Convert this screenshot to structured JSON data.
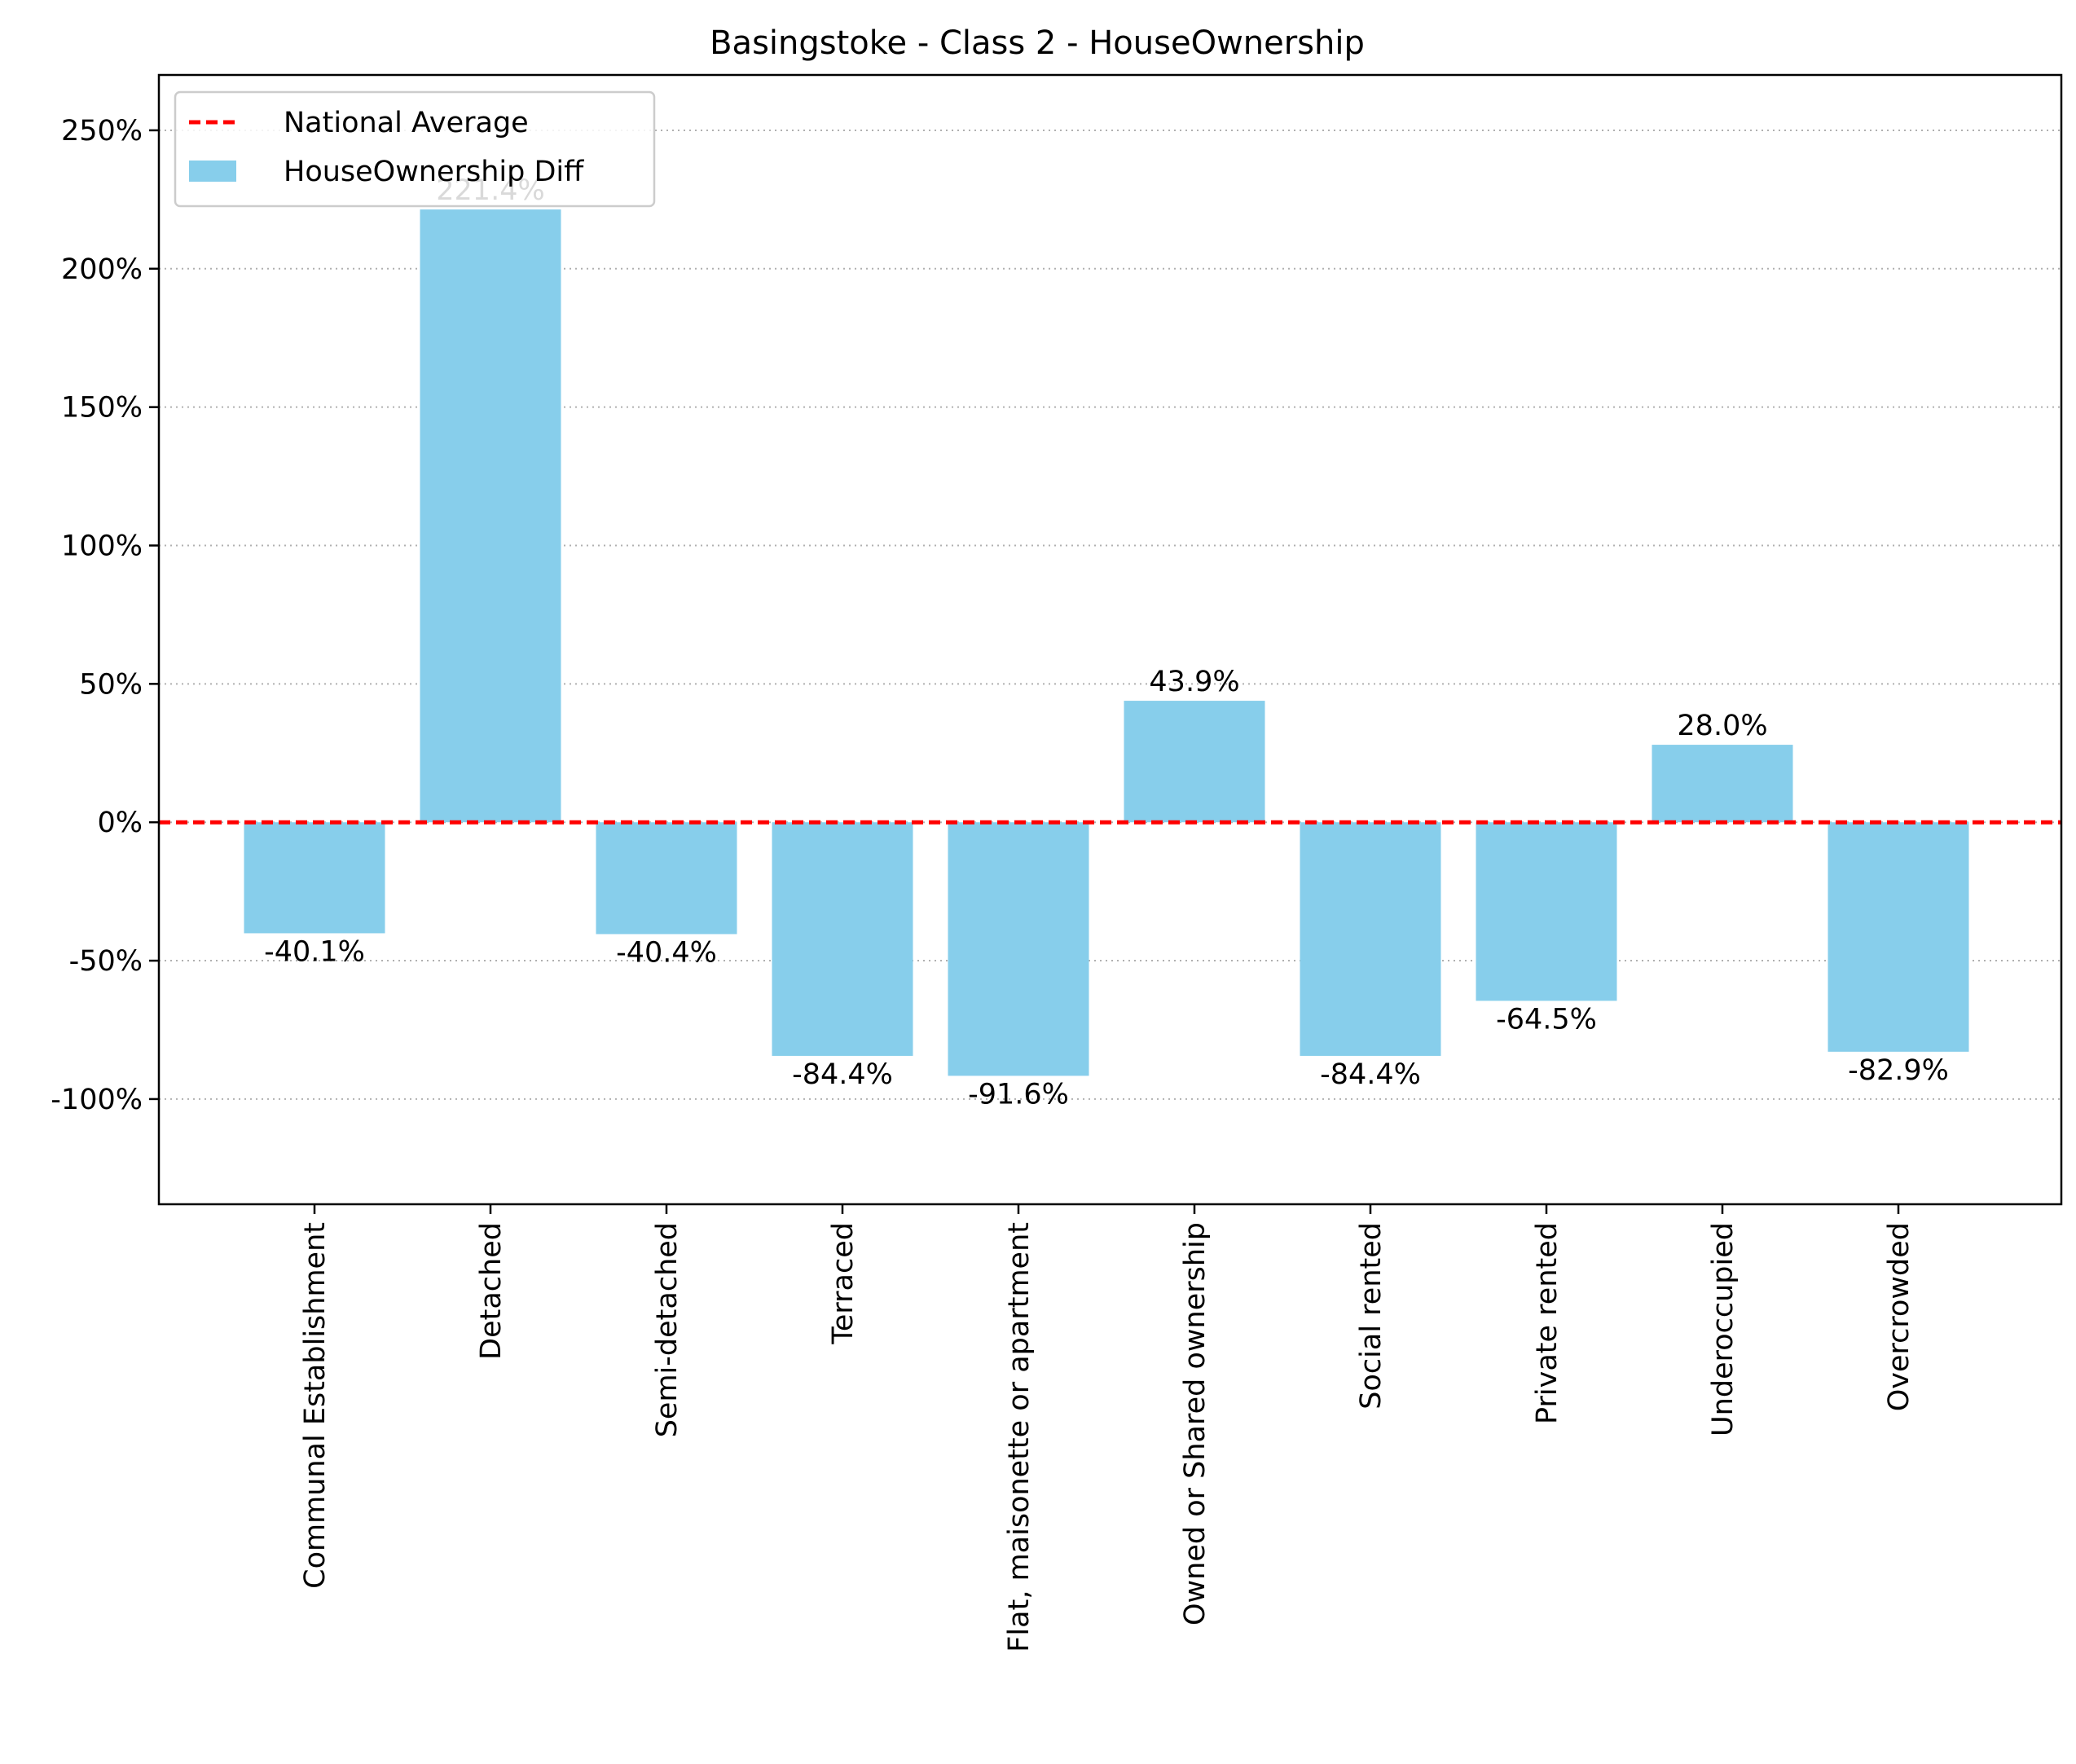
{
  "chart_data": {
    "type": "bar",
    "title": "Basingstoke - Class 2 - HouseOwnership",
    "xlabel": "",
    "ylabel": "",
    "categories": [
      "Communal Establishment",
      "Detached",
      "Semi-detached",
      "Terraced",
      "Flat, maisonette or apartment",
      "Owned or Shared ownership",
      "Social rented",
      "Private rented",
      "Underoccupied",
      "Overcrowded"
    ],
    "series": [
      {
        "name": "HouseOwnership Diff",
        "values": [
          -40.1,
          221.4,
          -40.4,
          -84.4,
          -91.6,
          43.9,
          -84.4,
          -64.5,
          28.0,
          -82.9
        ],
        "labels": [
          "-40.1%",
          "221.4%",
          "-40.4%",
          "-84.4%",
          "-91.6%",
          "43.9%",
          "-84.4%",
          "-64.5%",
          "28.0%",
          "-82.9%"
        ],
        "color": "#87ceeb"
      }
    ],
    "reference_line": {
      "name": "National Average",
      "value": 0,
      "color": "#ff0000",
      "style": "dashed"
    },
    "ylim": [
      -138,
      270
    ],
    "yticks": [
      -100,
      -50,
      0,
      50,
      100,
      150,
      200,
      250
    ],
    "ytick_labels": [
      "-100%",
      "-50%",
      "0%",
      "50%",
      "100%",
      "150%",
      "200%",
      "250%"
    ],
    "grid": {
      "y": true,
      "x": false,
      "style": "dotted"
    },
    "legend": {
      "position": "top-left",
      "entries": [
        "National Average",
        "HouseOwnership Diff"
      ]
    }
  }
}
